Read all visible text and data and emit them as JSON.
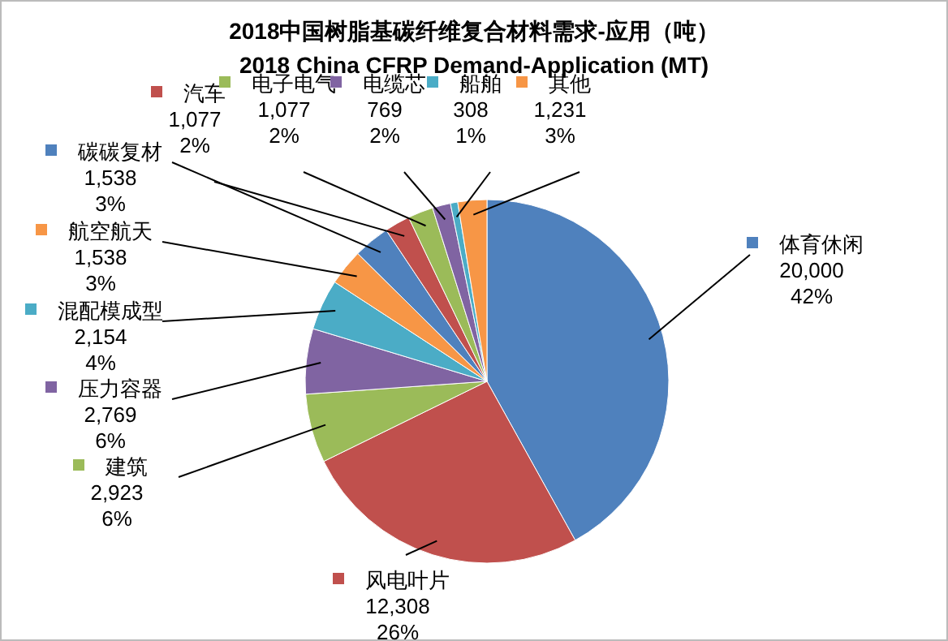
{
  "chart_data": {
    "type": "pie",
    "title": "2018中国树脂基碳纤维复合材料需求-应用（吨）",
    "subtitle": "2018 China CFRP Demand-Application (MT)",
    "categories": [
      "体育休闲",
      "风电叶片",
      "建筑",
      "压力容器",
      "混配模成型",
      "航空航天",
      "碳碳复材",
      "汽车",
      "电子电气",
      "电缆芯",
      "船舶",
      "其他"
    ],
    "values": [
      20000,
      12308,
      2923,
      2769,
      2154,
      1538,
      1538,
      1077,
      1077,
      769,
      308,
      1231
    ],
    "value_labels": [
      "20,000\n42%",
      "12,308\n26%",
      "2,923\n6%",
      "2,769\n6%",
      "2,154\n4%",
      "1,538\n3%",
      "1,538\n3%",
      "1,077\n2%",
      "1,077\n2%",
      "769\n2%",
      "308\n1%",
      "1,231\n3%"
    ],
    "legend": "left",
    "colors": [
      "#4f81bd",
      "#c0504d",
      "#9bbb59",
      "#8064a2",
      "#4bacc6",
      "#f79646",
      "#4f81bd",
      "#c0504d",
      "#9bbb59",
      "#8064a2",
      "#4bacc6",
      "#f79646"
    ]
  }
}
